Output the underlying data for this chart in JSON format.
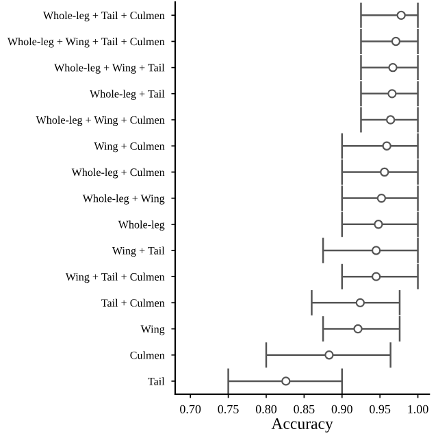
{
  "chart_data": {
    "type": "scatter",
    "orientation": "horizontal",
    "xlabel": "Accuracy",
    "categories": [
      "Whole-leg + Tail + Culmen",
      "Whole-leg + Wing + Tail + Culmen",
      "Whole-leg + Wing + Tail",
      "Whole-leg + Tail",
      "Whole-leg + Wing + Culmen",
      "Wing + Culmen",
      "Whole-leg + Culmen",
      "Whole-leg + Wing",
      "Whole-leg",
      "Wing + Tail",
      "Wing + Tail + Culmen",
      "Tail + Culmen",
      "Wing",
      "Culmen",
      "Tail"
    ],
    "values": [
      0.978,
      0.971,
      0.967,
      0.966,
      0.964,
      0.959,
      0.956,
      0.952,
      0.948,
      0.945,
      0.945,
      0.924,
      0.921,
      0.883,
      0.826
    ],
    "errors": [
      [
        0.925,
        1.0
      ],
      [
        0.925,
        1.0
      ],
      [
        0.925,
        1.0
      ],
      [
        0.925,
        1.0
      ],
      [
        0.925,
        1.0
      ],
      [
        0.9,
        1.0
      ],
      [
        0.9,
        1.0
      ],
      [
        0.9,
        1.0
      ],
      [
        0.9,
        1.0
      ],
      [
        0.875,
        1.0
      ],
      [
        0.9,
        1.0
      ],
      [
        0.86,
        0.976
      ],
      [
        0.875,
        0.976
      ],
      [
        0.8,
        0.964
      ],
      [
        0.75,
        0.9
      ]
    ],
    "color": "#555555",
    "marker": "circle",
    "grid": false,
    "legend": false,
    "xlim": [
      0.68,
      1.015
    ],
    "xticks": [
      {
        "value": 0.7,
        "label": "0.70"
      },
      {
        "value": 0.75,
        "label": "0.75"
      },
      {
        "value": 0.8,
        "label": "0.80"
      },
      {
        "value": 0.85,
        "label": "0.85"
      },
      {
        "value": 0.9,
        "label": "0.90"
      },
      {
        "value": 0.95,
        "label": "0.95"
      },
      {
        "value": 1.0,
        "label": "1.00"
      }
    ]
  }
}
